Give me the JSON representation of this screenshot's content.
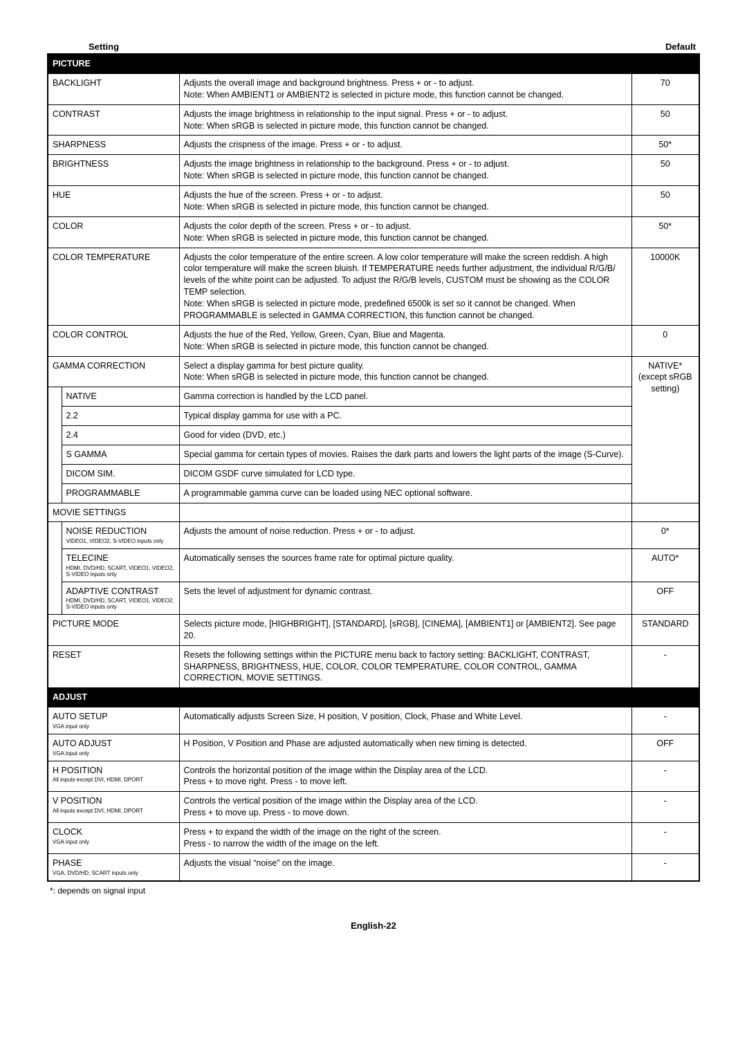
{
  "header": {
    "setting": "Setting",
    "default": "Default"
  },
  "picture": {
    "title": "PICTURE",
    "backlight": {
      "label": "BACKLIGHT",
      "desc": "Adjusts the overall image and background brightness. Press + or - to adjust.\nNote: When AMBIENT1 or AMBIENT2 is selected in picture mode, this function cannot be changed.",
      "default": "70"
    },
    "contrast": {
      "label": "CONTRAST",
      "desc": "Adjusts the image brightness in relationship to the input signal. Press + or - to adjust.\nNote: When sRGB is selected in picture mode, this function cannot be changed.",
      "default": "50"
    },
    "sharpness": {
      "label": "SHARPNESS",
      "desc": "Adjusts the crispness of the image. Press + or - to adjust.",
      "default": "50*"
    },
    "brightness": {
      "label": "BRIGHTNESS",
      "desc": "Adjusts the image brightness in relationship to the background. Press + or - to adjust.\nNote: When sRGB is selected in picture mode, this function cannot be changed.",
      "default": "50"
    },
    "hue": {
      "label": "HUE",
      "desc": "Adjusts the hue of the screen. Press + or - to adjust.\nNote: When sRGB is selected in picture mode, this function cannot be changed.",
      "default": "50"
    },
    "color": {
      "label": "COLOR",
      "desc": "Adjusts the color depth of the screen. Press + or - to adjust.\nNote: When sRGB is selected in picture mode, this function cannot be changed.",
      "default": "50*"
    },
    "colortemp": {
      "label": "COLOR TEMPERATURE",
      "desc": "Adjusts the color temperature of the entire screen. A low color temperature will make the screen reddish. A high color temperature will make the screen bluish. If TEMPERATURE needs further adjustment, the individual R/G/B/ levels of the white point can be adjusted. To adjust the R/G/B levels, CUSTOM must be showing as the COLOR TEMP selection.\nNote: When sRGB is selected in picture mode, predefined 6500k is set so it cannot be changed. When PROGRAMMABLE is selected in GAMMA CORRECTION, this function cannot be changed.",
      "default": "10000K"
    },
    "colorcontrol": {
      "label": "COLOR CONTROL",
      "desc": "Adjusts the hue of the Red, Yellow, Green, Cyan, Blue and Magenta.\nNote: When sRGB is selected in picture mode, this function cannot be changed.",
      "default": "0"
    },
    "gamma": {
      "label": "GAMMA CORRECTION",
      "desc": "Select a display gamma for best picture quality.\nNote: When sRGB is selected in picture mode, this function cannot be changed.",
      "default": "NATIVE*\n(except sRGB setting)",
      "native": {
        "label": "NATIVE",
        "desc": "Gamma correction is handled by the LCD panel."
      },
      "g22": {
        "label": "2.2",
        "desc": "Typical display gamma for use with a PC."
      },
      "g24": {
        "label": "2.4",
        "desc": "Good for video (DVD, etc.)"
      },
      "sgamma": {
        "label": "S GAMMA",
        "desc": "Special gamma for certain types of movies. Raises the dark parts and lowers the light parts of the image (S-Curve)."
      },
      "dicom": {
        "label": "DICOM SIM.",
        "desc": "DICOM GSDF curve simulated for LCD type."
      },
      "programmable": {
        "label": "PROGRAMMABLE",
        "desc": "A programmable gamma curve can be loaded using NEC optional software."
      }
    },
    "movie": {
      "label": "MOVIE SETTINGS",
      "noise": {
        "label": "NOISE REDUCTION",
        "sub": "VIDEO1, VIDEO2, S-VIDEO inputs only",
        "desc": "Adjusts the amount of noise reduction. Press + or - to adjust.",
        "default": "0*"
      },
      "telecine": {
        "label": "TELECINE",
        "sub": "HDMI, DVD/HD, SCART, VIDEO1, VIDEO2, S-VIDEO inputs only",
        "desc": "Automatically senses the sources frame rate for optimal picture quality.",
        "default": "AUTO*"
      },
      "adaptive": {
        "label": "ADAPTIVE CONTRAST",
        "sub": "HDMI, DVD/HD, SCART, VIDEO1, VIDEO2, S-VIDEO inputs only",
        "desc": "Sets the level of adjustment for dynamic contrast.",
        "default": "OFF"
      }
    },
    "mode": {
      "label": "PICTURE MODE",
      "desc": "Selects picture mode, [HIGHBRIGHT], [STANDARD], [sRGB], [CINEMA], [AMBIENT1] or [AMBIENT2]. See page 20.",
      "default": "STANDARD"
    },
    "reset": {
      "label": "RESET",
      "desc": "Resets the following settings within the PICTURE menu back to factory setting: BACKLIGHT, CONTRAST, SHARPNESS, BRIGHTNESS, HUE, COLOR, COLOR TEMPERATURE, COLOR CONTROL, GAMMA CORRECTION, MOVIE SETTINGS.",
      "default": "-"
    }
  },
  "adjust": {
    "title": "ADJUST",
    "autosetup": {
      "label": "AUTO SETUP",
      "sub": "VGA input only",
      "desc": "Automatically adjusts Screen Size, H position, V position, Clock, Phase and White Level.",
      "default": "-"
    },
    "autoadjust": {
      "label": "AUTO ADJUST",
      "sub": "VGA input only",
      "desc": "H Position, V Position and Phase are adjusted automatically when new timing is detected.",
      "default": "OFF"
    },
    "hpos": {
      "label": "H POSITION",
      "sub": "All inputs except DVI, HDMI, DPORT",
      "desc": "Controls the horizontal position of the image within the Display area of the LCD.\nPress + to move right. Press - to move left.",
      "default": "-"
    },
    "vpos": {
      "label": "V POSITION",
      "sub": "All inputs except DVI, HDMI, DPORT",
      "desc": "Controls the vertical position of the image within the Display area of the LCD.\nPress + to move up. Press - to move down.",
      "default": "-"
    },
    "clock": {
      "label": "CLOCK",
      "sub": "VGA input only",
      "desc": "Press + to expand the width of the image on the right of the screen.\nPress - to narrow the width of the image on the left.",
      "default": "-"
    },
    "phase": {
      "label": "PHASE",
      "sub": "VGA, DVD/HD, SCART inputs only",
      "desc": "Adjusts the visual “noise” on the image.",
      "default": "-"
    }
  },
  "footnote": "*: depends on signal input",
  "footer": "English-22"
}
